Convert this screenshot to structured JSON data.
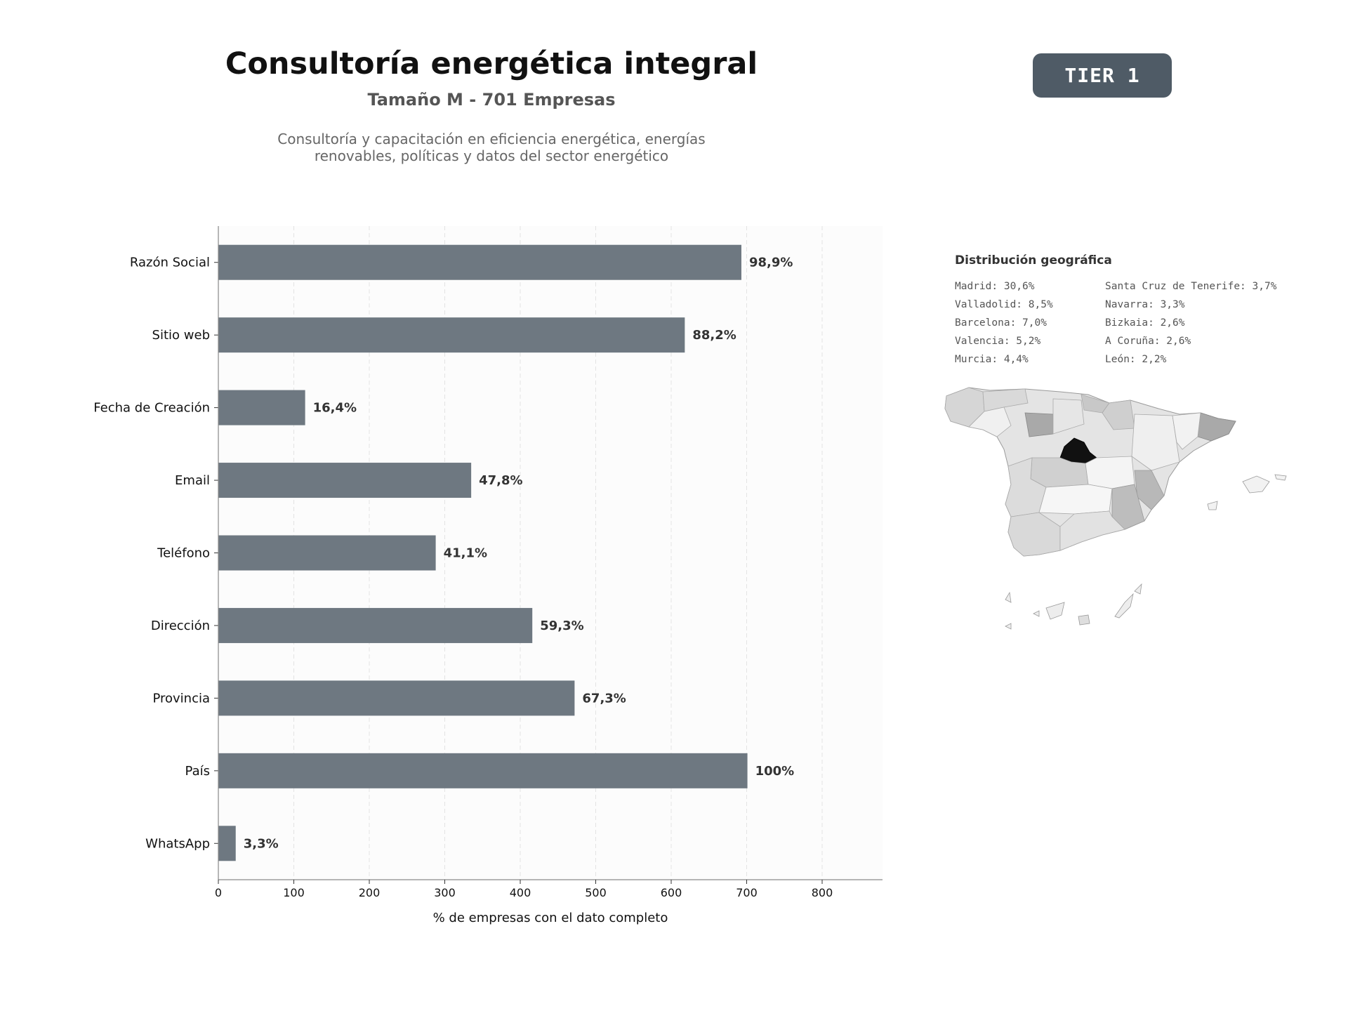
{
  "header": {
    "title": "Consultoría energética integral",
    "subtitle": "Tamaño M - 701 Empresas",
    "description_line1": "Consultoría y capacitación en eficiencia energética, energías",
    "description_line2": "renovables, políticas y datos del sector energético",
    "badge": "TIER 1"
  },
  "chart_data": {
    "type": "bar",
    "orientation": "horizontal",
    "categories": [
      "Razón Social",
      "Sitio web",
      "Fecha de Creación",
      "Email",
      "Teléfono",
      "Dirección",
      "Provincia",
      "País",
      "WhatsApp"
    ],
    "values": [
      693,
      618,
      115,
      335,
      288,
      416,
      472,
      701,
      23
    ],
    "data_labels": [
      "98,9%",
      "88,2%",
      "16,4%",
      "47,8%",
      "41,1%",
      "59,3%",
      "67,3%",
      "100%",
      "3,3%"
    ],
    "xlabel": "% de empresas con el dato completo",
    "xticks": [
      0,
      100,
      200,
      300,
      400,
      500,
      600,
      700,
      800
    ],
    "xlim": [
      0,
      880
    ],
    "bar_color": "#6e7881",
    "grid": "x dashed"
  },
  "geo": {
    "title": "Distribución geográfica",
    "items": [
      "Madrid: 30,6%",
      "Santa Cruz de Tenerife: 3,7%",
      "Valladolid: 8,5%",
      "Navarra: 3,3%",
      "Barcelona: 7,0%",
      "Bizkaia: 2,6%",
      "Valencia: 5,2%",
      "A Coruña: 2,6%",
      "Murcia: 4,4%",
      "León: 2,2%"
    ],
    "map_highlight": "Madrid",
    "map_highlight_color": "#111111"
  }
}
